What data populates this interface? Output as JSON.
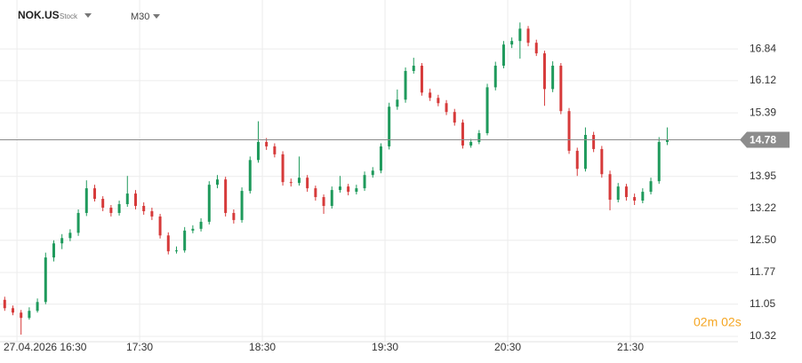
{
  "chart_data": {
    "type": "candlestick",
    "symbol": "NOK.US",
    "instrument_type": "Stock",
    "timeframe": "M30",
    "countdown": "02m 02s",
    "last_price": 14.78,
    "up_color": "#1f9a5c",
    "down_color": "#d63a3a",
    "grid": true,
    "x": [
      -6,
      -2,
      2,
      6,
      10,
      14,
      18,
      22,
      26,
      30,
      34,
      38,
      42,
      46,
      50,
      54,
      58,
      62,
      66,
      70,
      74,
      78,
      82,
      86,
      90,
      94,
      98,
      102,
      106,
      110,
      114,
      118,
      122,
      126,
      130,
      134,
      138,
      142,
      146,
      150,
      154,
      158,
      162,
      166,
      170,
      174,
      178,
      182,
      186,
      190,
      194,
      198,
      202,
      206,
      210,
      214,
      218,
      222,
      226,
      230,
      234,
      238,
      242,
      246,
      250,
      254,
      258,
      262,
      266,
      270,
      274,
      278,
      282,
      286,
      290,
      294,
      298,
      302,
      306,
      310,
      314,
      318
    ],
    "open": [
      11.15,
      10.96,
      10.86,
      10.74,
      10.9,
      11.1,
      12.11,
      12.43,
      12.55,
      12.67,
      13.12,
      13.68,
      13.44,
      13.24,
      13.12,
      13.32,
      13.56,
      13.28,
      13.16,
      13.04,
      12.61,
      12.25,
      12.27,
      12.72,
      12.76,
      12.92,
      13.76,
      13.88,
      13.12,
      12.96,
      13.62,
      14.32,
      14.73,
      14.63,
      14.45,
      13.82,
      13.8,
      13.92,
      13.68,
      13.48,
      13.28,
      13.64,
      13.72,
      13.6,
      13.68,
      13.98,
      14.08,
      14.63,
      15.53,
      15.69,
      16.34,
      16.46,
      15.85,
      15.73,
      15.61,
      15.41,
      15.17,
      14.65,
      14.73,
      14.93,
      15.97,
      16.46,
      16.94,
      17.02,
      17.3,
      16.98,
      16.74,
      15.93,
      16.46,
      15.43,
      14.53,
      14.12,
      14.89,
      14.57,
      14.0,
      13.42,
      13.72,
      13.48,
      13.4,
      13.6,
      13.84,
      14.73
    ],
    "high": [
      11.22,
      11.02,
      10.92,
      10.98,
      11.18,
      12.22,
      12.5,
      12.64,
      12.75,
      13.2,
      13.86,
      13.76,
      13.5,
      13.3,
      13.4,
      13.96,
      13.64,
      13.36,
      13.24,
      13.1,
      12.68,
      12.36,
      12.8,
      12.84,
      13.0,
      13.84,
      13.98,
      13.94,
      13.2,
      13.7,
      14.4,
      15.2,
      14.82,
      14.7,
      14.52,
      13.9,
      14.4,
      13.98,
      13.74,
      13.54,
      13.72,
      13.96,
      13.78,
      13.76,
      14.06,
      14.16,
      14.7,
      15.62,
      15.92,
      16.42,
      16.64,
      16.52,
      15.94,
      15.8,
      15.68,
      15.48,
      15.24,
      14.8,
      15.0,
      16.05,
      16.55,
      17.02,
      17.1,
      17.44,
      17.36,
      17.05,
      16.8,
      16.56,
      16.52,
      15.5,
      14.6,
      15.06,
      14.96,
      14.64,
      14.08,
      13.8,
      13.78,
      13.56,
      13.68,
      13.92,
      14.84,
      15.06
    ],
    "low": [
      10.9,
      10.8,
      10.36,
      10.7,
      10.86,
      11.05,
      12.02,
      12.3,
      12.48,
      12.6,
      13.05,
      13.38,
      13.16,
      13.04,
      13.06,
      13.26,
      13.2,
      13.08,
      12.96,
      12.54,
      12.18,
      12.2,
      12.22,
      12.66,
      12.7,
      12.86,
      13.68,
      13.04,
      12.88,
      12.9,
      13.56,
      14.26,
      14.55,
      14.38,
      13.74,
      13.72,
      13.74,
      13.6,
      13.4,
      13.1,
      13.22,
      13.58,
      13.52,
      13.54,
      13.62,
      13.92,
      14.02,
      14.56,
      15.46,
      15.62,
      16.28,
      15.78,
      15.66,
      15.54,
      15.34,
      15.1,
      14.58,
      14.6,
      14.68,
      14.88,
      15.9,
      16.4,
      16.86,
      16.62,
      16.9,
      16.68,
      15.55,
      15.86,
      15.36,
      14.46,
      13.96,
      14.06,
      14.5,
      13.92,
      13.18,
      13.36,
      13.4,
      13.3,
      13.34,
      13.54,
      13.78,
      14.66
    ],
    "close": [
      10.96,
      10.86,
      10.74,
      10.9,
      11.1,
      12.11,
      12.43,
      12.55,
      12.67,
      13.12,
      13.68,
      13.44,
      13.24,
      13.12,
      13.32,
      13.56,
      13.28,
      13.16,
      13.04,
      12.61,
      12.25,
      12.27,
      12.72,
      12.76,
      12.92,
      13.76,
      13.88,
      13.12,
      12.96,
      13.62,
      14.32,
      14.73,
      14.63,
      14.45,
      13.82,
      13.8,
      13.92,
      13.68,
      13.48,
      13.28,
      13.64,
      13.72,
      13.6,
      13.68,
      13.98,
      14.08,
      14.63,
      15.53,
      15.69,
      16.34,
      16.46,
      15.85,
      15.73,
      15.61,
      15.41,
      15.17,
      14.65,
      14.73,
      14.93,
      15.97,
      16.46,
      16.94,
      17.02,
      17.3,
      16.98,
      16.74,
      15.93,
      16.46,
      15.43,
      14.53,
      14.12,
      14.89,
      14.57,
      14.0,
      13.42,
      13.72,
      13.48,
      13.4,
      13.6,
      13.84,
      14.73,
      14.78
    ],
    "xlim": [
      -8.3,
      352.6
    ],
    "xticks": [
      {
        "value": 0,
        "label": "27.04.2026 16:30"
      },
      {
        "value": 60,
        "label": "17:30"
      },
      {
        "value": 120,
        "label": "18:30"
      },
      {
        "value": 180,
        "label": "19:30"
      },
      {
        "value": 240,
        "label": "20:30"
      },
      {
        "value": 300,
        "label": "21:30"
      }
    ],
    "ylim": [
      10.2,
      17.95
    ],
    "yticks": [
      16.84,
      16.12,
      15.39,
      13.95,
      13.22,
      {
        "value": 12.5,
        "label": "12.50"
      },
      11.77,
      11.05,
      10.32
    ]
  }
}
